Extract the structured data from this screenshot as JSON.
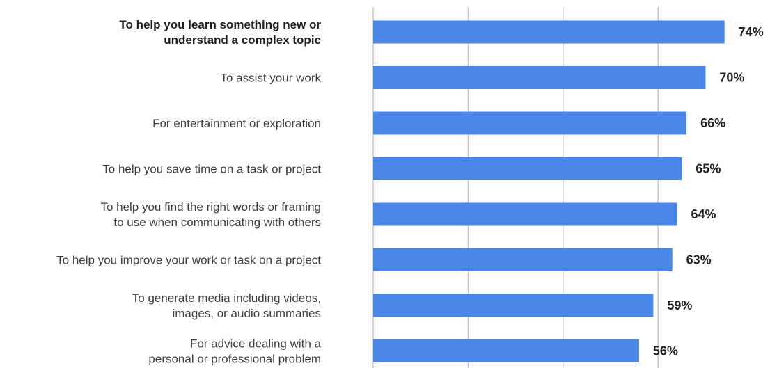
{
  "chart_data": {
    "type": "bar",
    "orientation": "horizontal",
    "categories": [
      [
        "To help you learn something new or",
        "understand a complex topic"
      ],
      [
        "To assist your work"
      ],
      [
        "For entertainment or exploration"
      ],
      [
        "To help you save time on a task or project"
      ],
      [
        "To help you find the right words or framing",
        "to use when communicating with others"
      ],
      [
        "To help you improve your work or task on a project"
      ],
      [
        "To generate media including videos,",
        "images, or audio summaries"
      ],
      [
        "For advice dealing with a",
        "personal or professional problem"
      ]
    ],
    "values": [
      74,
      70,
      66,
      65,
      64,
      63,
      59,
      56
    ],
    "value_labels": [
      "74%",
      "70%",
      "66%",
      "65%",
      "64%",
      "63%",
      "59%",
      "56%"
    ],
    "highlighted_category_index": 0,
    "xlim": [
      0,
      80
    ],
    "gridlines_at": [
      0,
      20,
      40,
      60
    ],
    "grid": true,
    "legend": "none",
    "title": "",
    "xlabel": "",
    "ylabel": "",
    "colors": {
      "bar": "#4a86e8",
      "gridline": "#c6c6c6",
      "value_text": "#202124",
      "label_text": "#3c4043"
    }
  }
}
